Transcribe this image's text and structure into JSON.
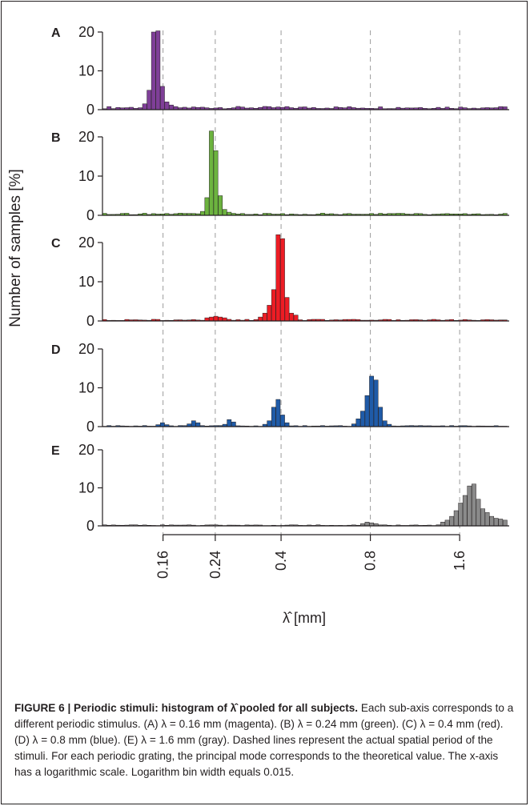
{
  "figure": {
    "caption_lead": "FIGURE 6 | Periodic stimuli: histogram of λ̂ pooled for all subjects.",
    "caption_body": " Each sub-axis corresponds to a different periodic stimulus. (A) λ = 0.16 mm (magenta). (B) λ = 0.24 mm (green). (C) λ = 0.4 mm (red). (D) λ = 0.8 mm (blue). (E) λ = 1.6 mm (gray). Dashed lines represent the actual spatial period of the stimuli. For each periodic grating, the principal mode corresponds to the theoretical value. The x-axis has a logarithmic scale. Logarithm bin width equals 0.015."
  },
  "chart_data": {
    "type": "bar",
    "xlabel": "λ̂ [mm]",
    "ylabel": "Number  of samples  [%]",
    "x_scale": "log",
    "x_range_mm": [
      0.1,
      2.35
    ],
    "x_ticks": [
      0.16,
      0.24,
      0.4,
      0.8,
      1.6
    ],
    "x_tick_labels": [
      "0.16",
      "0.24",
      "0.4",
      "0.8",
      "1.6"
    ],
    "dashed_lines_mm": [
      0.16,
      0.24,
      0.4,
      0.8,
      1.6
    ],
    "ylim": [
      0,
      20
    ],
    "y_ticks": [
      0,
      10,
      20
    ],
    "y_tick_labels": [
      "0",
      "10",
      "20"
    ],
    "bin_width_log10": 0.015,
    "panels": [
      {
        "letter": "A",
        "lambda_mm": 0.16,
        "color": "#7f3f98",
        "color_name": "magenta",
        "peaks": [
          {
            "center_mm": 0.155,
            "values": [
              0.5,
              1.5,
              5.0,
              20.0,
              20.3,
              6.0,
              2.0,
              1.2
            ]
          }
        ],
        "background": 0.6
      },
      {
        "letter": "B",
        "lambda_mm": 0.24,
        "color": "#6cb33f",
        "color_name": "green",
        "peaks": [
          {
            "center_mm": 0.238,
            "values": [
              0.4,
              1.0,
              4.5,
              21.5,
              16.5,
              5.0,
              1.5,
              0.8
            ]
          }
        ],
        "background": 0.4
      },
      {
        "letter": "C",
        "lambda_mm": 0.4,
        "color": "#ed1c24",
        "color_name": "red",
        "peaks": [
          {
            "center_mm": 0.398,
            "values": [
              1.0,
              2.0,
              4.0,
              8.0,
              22.0,
              21.0,
              6.0,
              2.0,
              1.5
            ]
          },
          {
            "center_mm": 0.24,
            "values": [
              0.8,
              1.0,
              1.2,
              1.0,
              0.8
            ]
          }
        ],
        "background": 0.3
      },
      {
        "letter": "D",
        "lambda_mm": 0.8,
        "color": "#1f5ba8",
        "color_name": "blue",
        "peaks": [
          {
            "center_mm": 0.795,
            "values": [
              0.7,
              2.0,
              4.0,
              8.0,
              13.0,
              12.0,
              5.0,
              1.5,
              0.6
            ]
          },
          {
            "center_mm": 0.398,
            "values": [
              0.6,
              1.5,
              5.0,
              7.0,
              3.0,
              1.0
            ]
          },
          {
            "center_mm": 0.265,
            "values": [
              0.6,
              1.8,
              1.2
            ]
          },
          {
            "center_mm": 0.2,
            "values": [
              0.7,
              1.5,
              1.0
            ]
          },
          {
            "center_mm": 0.16,
            "values": [
              0.5,
              1.0,
              0.5
            ]
          }
        ],
        "background": 0.2
      },
      {
        "letter": "E",
        "lambda_mm": 1.6,
        "color": "#8a8a8a",
        "color_name": "gray",
        "peaks": [
          {
            "center_mm": 1.595,
            "values": [
              1.0,
              1.5,
              2.5,
              4.0,
              6.0,
              8.0,
              10.5,
              11.0,
              7.0,
              4.5,
              3.5,
              2.5,
              2.0,
              1.8,
              1.5,
              1.2,
              1.0,
              0.8
            ]
          },
          {
            "center_mm": 0.8,
            "values": [
              0.6,
              1.0,
              0.8,
              0.6
            ]
          }
        ],
        "background": 0.2
      }
    ]
  }
}
